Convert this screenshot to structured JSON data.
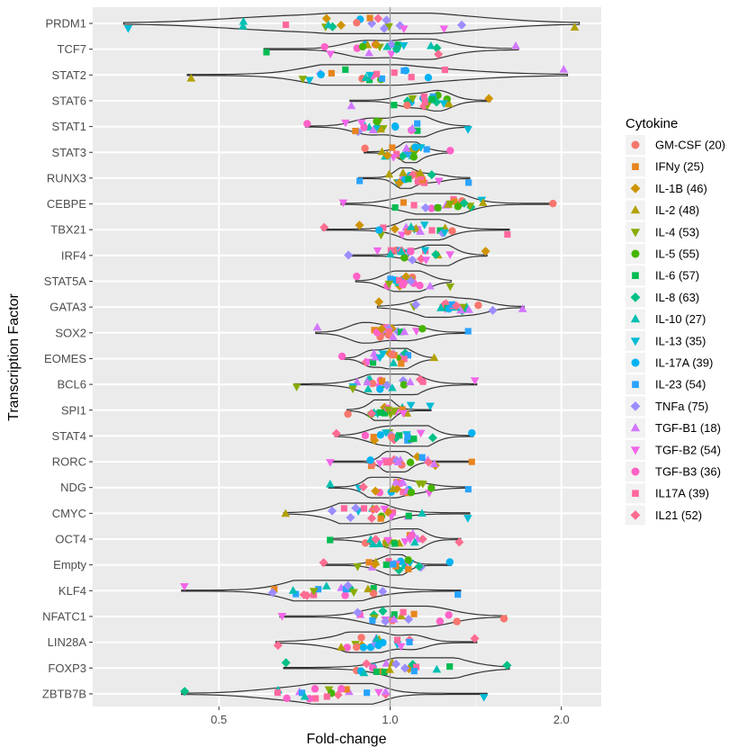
{
  "chart_data": {
    "type": "violin",
    "xlabel": "Fold-change",
    "ylabel": "Transcription Factor",
    "x_scale": "log2",
    "xlim": [
      0.3,
      2.35
    ],
    "x_ticks": [
      0.5,
      1.0,
      2.0
    ],
    "x_tick_labels": [
      "0.5",
      "1.0",
      "2.0"
    ],
    "reference_line": 1.0,
    "categories": [
      "PRDM1",
      "TCF7",
      "STAT2",
      "STAT6",
      "STAT1",
      "STAT3",
      "RUNX3",
      "CEBPE",
      "TBX21",
      "IRF4",
      "STAT5A",
      "GATA3",
      "SOX2",
      "EOMES",
      "BCL6",
      "SPI1",
      "STAT4",
      "RORC",
      "NDG",
      "CMYC",
      "OCT4",
      "Empty",
      "KLF4",
      "NFATC1",
      "LIN28A",
      "FOXP3",
      "ZBTB7B"
    ],
    "ranges": [
      [
        0.34,
        2.15
      ],
      [
        0.6,
        1.68
      ],
      [
        0.44,
        2.05
      ],
      [
        0.85,
        1.5
      ],
      [
        0.71,
        1.38
      ],
      [
        0.9,
        1.28
      ],
      [
        0.88,
        1.38
      ],
      [
        0.82,
        1.95
      ],
      [
        0.76,
        1.62
      ],
      [
        0.84,
        1.48
      ],
      [
        0.87,
        1.28
      ],
      [
        0.95,
        1.72
      ],
      [
        0.74,
        1.38
      ],
      [
        0.82,
        1.2
      ],
      [
        0.68,
        1.42
      ],
      [
        0.84,
        1.18
      ],
      [
        0.8,
        1.4
      ],
      [
        0.78,
        1.4
      ],
      [
        0.78,
        1.38
      ],
      [
        0.65,
        1.38
      ],
      [
        0.78,
        1.33
      ],
      [
        0.76,
        1.28
      ],
      [
        0.43,
        1.33
      ],
      [
        0.64,
        1.6
      ],
      [
        0.63,
        1.42
      ],
      [
        0.65,
        1.62
      ],
      [
        0.43,
        1.48
      ]
    ],
    "legend": {
      "title": "Cytokine",
      "placement": "right",
      "entries": [
        {
          "label": "GM-CSF (20)",
          "color": "#F8766D",
          "shape": "circle"
        },
        {
          "label": "IFNy (25)",
          "color": "#E7851E",
          "shape": "square"
        },
        {
          "label": "IL-1B (46)",
          "color": "#D09400",
          "shape": "diamond"
        },
        {
          "label": "IL-2 (48)",
          "color": "#B2A100",
          "shape": "triangle-up"
        },
        {
          "label": "IL-4 (53)",
          "color": "#89AC00",
          "shape": "triangle-down"
        },
        {
          "label": "IL-5 (55)",
          "color": "#45B500",
          "shape": "circle"
        },
        {
          "label": "IL-6 (57)",
          "color": "#00BC51",
          "shape": "square"
        },
        {
          "label": "IL-8 (63)",
          "color": "#00C087",
          "shape": "diamond"
        },
        {
          "label": "IL-10 (27)",
          "color": "#00C0B2",
          "shape": "triangle-up"
        },
        {
          "label": "IL-13 (35)",
          "color": "#00BCD6",
          "shape": "triangle-down"
        },
        {
          "label": "IL-17A (39)",
          "color": "#00B3F2",
          "shape": "circle"
        },
        {
          "label": "IL-23 (54)",
          "color": "#29A3FF",
          "shape": "square"
        },
        {
          "label": "TNFa (75)",
          "color": "#9C8DFF",
          "shape": "diamond"
        },
        {
          "label": "TGF-B1 (18)",
          "color": "#D277FF",
          "shape": "triangle-up"
        },
        {
          "label": "TGF-B2 (54)",
          "color": "#F166E8",
          "shape": "triangle-down"
        },
        {
          "label": "TGF-B3 (36)",
          "color": "#FF61C7",
          "shape": "circle"
        },
        {
          "label": "IL17A (39)",
          "color": "#FF689E",
          "shape": "square"
        },
        {
          "label": "IL21 (52)",
          "color": "#FF6C91",
          "shape": "diamond"
        }
      ]
    }
  }
}
